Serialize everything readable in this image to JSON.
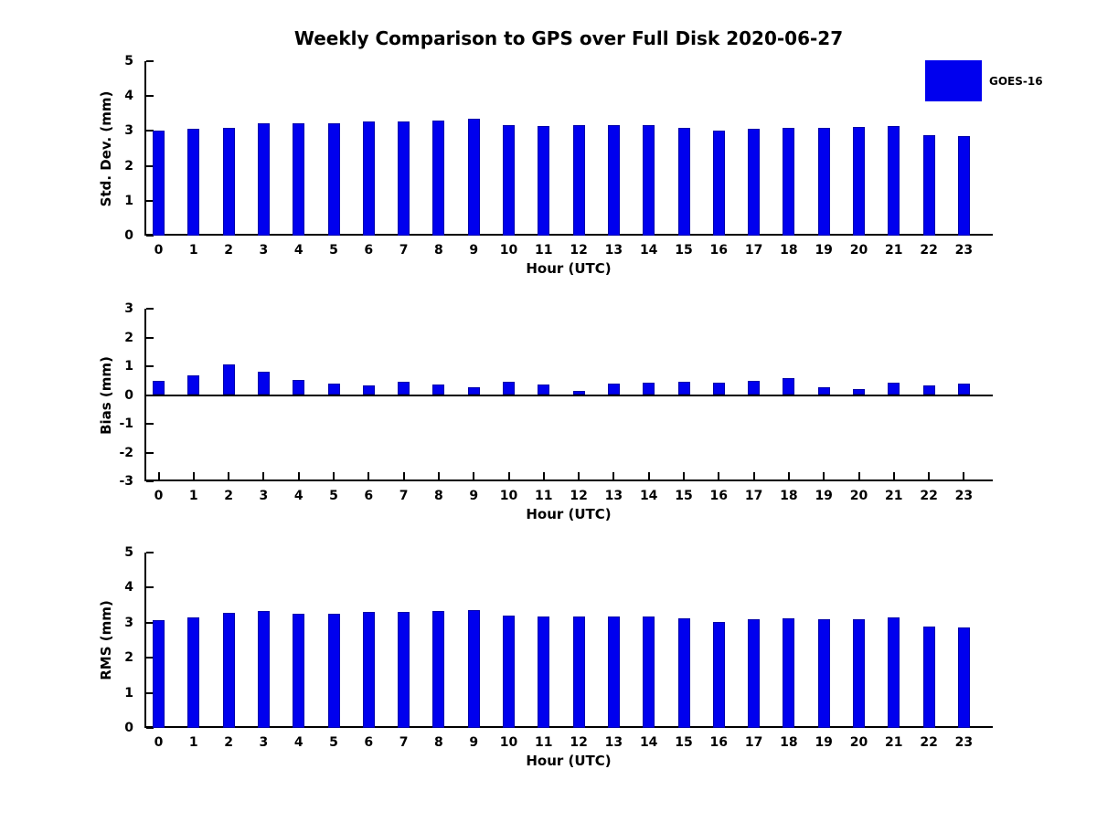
{
  "title": "Weekly Comparison to GPS over Full Disk 2020-06-27",
  "legend": {
    "label": "GOES-16",
    "swatch_color": "#0000EE",
    "position": "top-right"
  },
  "colors": {
    "bar_fill": "#0000EE",
    "bar_edge": "#0000AA",
    "axis": "#000000",
    "text": "#000000",
    "background": "#FFFFFF"
  },
  "chart_data": [
    {
      "type": "bar",
      "name": "std-dev",
      "series_name": "GOES-16",
      "ylabel": "Std. Dev. (mm)",
      "xlabel": "Hour (UTC)",
      "ylim": [
        0,
        5
      ],
      "yticks": [
        0,
        1,
        2,
        3,
        4,
        5
      ],
      "grid": false,
      "categories": [
        "0",
        "1",
        "2",
        "3",
        "4",
        "5",
        "6",
        "7",
        "8",
        "9",
        "10",
        "11",
        "12",
        "13",
        "14",
        "15",
        "16",
        "17",
        "18",
        "19",
        "20",
        "21",
        "22",
        "23"
      ],
      "values": [
        3.02,
        3.07,
        3.1,
        3.22,
        3.21,
        3.23,
        3.28,
        3.27,
        3.3,
        3.35,
        3.18,
        3.15,
        3.17,
        3.18,
        3.17,
        3.1,
        3.02,
        3.07,
        3.1,
        3.09,
        3.11,
        3.15,
        2.88,
        2.85
      ]
    },
    {
      "type": "bar",
      "name": "bias",
      "series_name": "GOES-16",
      "ylabel": "Bias (mm)",
      "xlabel": "Hour (UTC)",
      "ylim": [
        -3,
        3
      ],
      "yticks": [
        3,
        2,
        1,
        0,
        -1,
        -2,
        -3
      ],
      "grid": false,
      "categories": [
        "0",
        "1",
        "2",
        "3",
        "4",
        "5",
        "6",
        "7",
        "8",
        "9",
        "10",
        "11",
        "12",
        "13",
        "14",
        "15",
        "16",
        "17",
        "18",
        "19",
        "20",
        "21",
        "22",
        "23"
      ],
      "values": [
        0.49,
        0.69,
        1.07,
        0.8,
        0.52,
        0.41,
        0.34,
        0.45,
        0.35,
        0.28,
        0.46,
        0.37,
        0.13,
        0.39,
        0.44,
        0.47,
        0.44,
        0.49,
        0.58,
        0.27,
        0.22,
        0.42,
        0.34,
        0.41
      ]
    },
    {
      "type": "bar",
      "name": "rms",
      "series_name": "GOES-16",
      "ylabel": "RMS (mm)",
      "xlabel": "Hour (UTC)",
      "ylim": [
        0,
        5
      ],
      "yticks": [
        0,
        1,
        2,
        3,
        4,
        5
      ],
      "grid": false,
      "categories": [
        "0",
        "1",
        "2",
        "3",
        "4",
        "5",
        "6",
        "7",
        "8",
        "9",
        "10",
        "11",
        "12",
        "13",
        "14",
        "15",
        "16",
        "17",
        "18",
        "19",
        "20",
        "21",
        "22",
        "23"
      ],
      "values": [
        3.06,
        3.15,
        3.27,
        3.33,
        3.25,
        3.26,
        3.3,
        3.3,
        3.33,
        3.35,
        3.2,
        3.17,
        3.17,
        3.18,
        3.19,
        3.13,
        3.03,
        3.1,
        3.13,
        3.1,
        3.11,
        3.16,
        2.89,
        2.87
      ]
    }
  ]
}
